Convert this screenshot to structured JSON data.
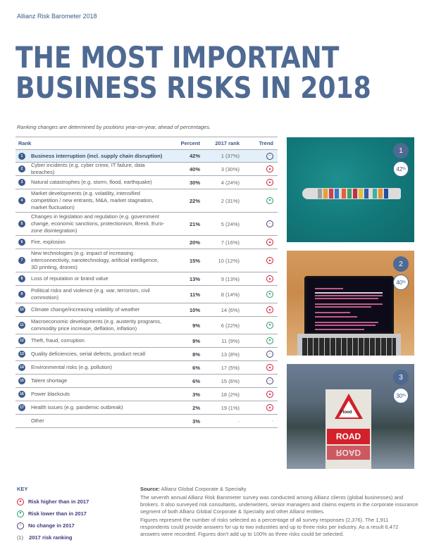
{
  "header": {
    "label": "Allianz Risk Barometer 2018"
  },
  "title": {
    "line1": "THE MOST IMPORTANT",
    "line2": "BUSINESS RISKS IN 2018"
  },
  "subtitle": "Ranking changes are determined by positions year-on-year, ahead of percentages.",
  "table": {
    "headers": {
      "rank": "Rank",
      "percent": "Percent",
      "prev_rank": "2017 rank",
      "trend": "Trend"
    },
    "rows": [
      {
        "rank": "1",
        "name": "Business interruption (incl. supply chain disruption)",
        "percent": "42%",
        "prev": "1 (37%)",
        "trend": "same"
      },
      {
        "rank": "2",
        "name": "Cyber incidents (e.g. cyber crime, IT failure, data breaches)",
        "percent": "40%",
        "prev": "3 (30%)",
        "trend": "up"
      },
      {
        "rank": "3",
        "name": "Natural catastrophes (e.g. storm, flood, earthquake)",
        "percent": "30%",
        "prev": "4 (24%)",
        "trend": "up"
      },
      {
        "rank": "4",
        "name": "Market developments (e.g. volatility, intensified competition / new entrants, M&A, market stagnation, market fluctuation)",
        "percent": "22%",
        "prev": "2 (31%)",
        "trend": "down"
      },
      {
        "rank": "5",
        "name": "Changes in legislation and regulation (e.g. government change, economic sanctions, protectionism, Brexit, Euro-zone disintegration)",
        "percent": "21%",
        "prev": "5 (24%)",
        "trend": "same"
      },
      {
        "rank": "6",
        "name": "Fire, explosion",
        "percent": "20%",
        "prev": "7 (16%)",
        "trend": "up"
      },
      {
        "rank": "7",
        "name": "New technologies (e.g. impact of increasing interconnectivity, nanotechnology, artificial intelligence, 3D printing, drones)",
        "percent": "15%",
        "prev": "10 (12%)",
        "trend": "up"
      },
      {
        "rank": "8",
        "name": "Loss of reputation or brand value",
        "percent": "13%",
        "prev": "9 (13%)",
        "trend": "up"
      },
      {
        "rank": "9",
        "name": "Political risks and violence (e.g. war, terrorism, civil commotion)",
        "percent": "11%",
        "prev": "8 (14%)",
        "trend": "down"
      },
      {
        "rank": "10",
        "name": "Climate change/increasing volatility of weather",
        "percent": "10%",
        "prev": "14 (6%)",
        "trend": "up"
      },
      {
        "rank": "11",
        "name": "Macroeconomic developments (e.g. austerity programs, commodity price increase, deflation, inflation)",
        "percent": "9%",
        "prev": "6 (22%)",
        "trend": "down"
      },
      {
        "rank": "12",
        "name": "Theft, fraud, corruption",
        "percent": "9%",
        "prev": "11 (9%)",
        "trend": "down"
      },
      {
        "rank": "13",
        "name": "Quality deficiencies, serial defects, product recall",
        "percent": "8%",
        "prev": "13 (8%)",
        "trend": "same"
      },
      {
        "rank": "14",
        "name": "Environmental risks (e.g. pollution)",
        "percent": "6%",
        "prev": "17 (5%)",
        "trend": "up"
      },
      {
        "rank": "15",
        "name": "Talent shortage",
        "percent": "6%",
        "prev": "15 (6%)",
        "trend": "same"
      },
      {
        "rank": "16",
        "name": "Power blackouts",
        "percent": "3%",
        "prev": "18 (2%)",
        "trend": "up"
      },
      {
        "rank": "17",
        "name": "Health issues (e.g. pandemic outbreak)",
        "percent": "2%",
        "prev": "19 (1%)",
        "trend": "up"
      },
      {
        "rank": "",
        "name": "Other",
        "percent": "3%",
        "prev": "-",
        "trend": "-"
      }
    ]
  },
  "photos": [
    {
      "rank": "1",
      "percent": "42",
      "pct_sign": "%",
      "subject": "container ship"
    },
    {
      "rank": "2",
      "percent": "40",
      "pct_sign": "%",
      "subject": "laptop ransomware screen"
    },
    {
      "rank": "3",
      "percent": "30",
      "pct_sign": "%",
      "subject": "flooded road sign",
      "sign_text": "Flood",
      "road_text": "ROAD"
    }
  ],
  "key": {
    "title": "KEY",
    "items": [
      {
        "icon": "up",
        "label": "Risk higher than in 2017"
      },
      {
        "icon": "down",
        "label": "Risk lower than in 2017"
      },
      {
        "icon": "same",
        "label": "No change in 2017"
      },
      {
        "icon": "paren",
        "symbol": "(1)",
        "label": "2017 risk ranking"
      }
    ]
  },
  "source": {
    "label": "Source:",
    "org": "Allianz Global Corporate & Specialty",
    "para1": "The seventh annual Allianz Risk Barometer survey was conducted among Allianz clients (global businesses) and brokers. It also surveyed risk consultants, underwriters, senior managers and claims experts in the corporate insurance segment of both Allianz Global Corporate & Specialty and other Allianz entities.",
    "para2": "Figures represent the number of risks selected as a percentage of all survey responses (2,376). The 1,911 respondents could provide answers for up to two industries and up to three risks per industry. As a result 6,472 answers were recorded. Figures don't add up to 100% as three risks could be selected."
  },
  "colors": {
    "title": "#4f6a92",
    "accent": "#3d5a88",
    "highlight_row": "#e3f0fa",
    "trend_up": "#d6193a",
    "trend_down": "#2a9a6e",
    "trend_same": "#4a3d7a"
  }
}
